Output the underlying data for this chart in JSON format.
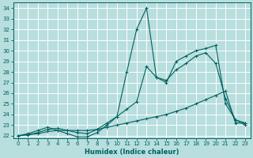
{
  "xlabel": "Humidex (Indice chaleur)",
  "bg_color": "#b8dede",
  "grid_color": "#ffffff",
  "line_color": "#006060",
  "xlim": [
    -0.5,
    23.5
  ],
  "ylim": [
    21.8,
    34.5
  ],
  "xticks": [
    0,
    1,
    2,
    3,
    4,
    5,
    6,
    7,
    8,
    9,
    10,
    11,
    12,
    13,
    14,
    15,
    16,
    17,
    18,
    19,
    20,
    21,
    22,
    23
  ],
  "yticks": [
    22,
    23,
    24,
    25,
    26,
    27,
    28,
    29,
    30,
    31,
    32,
    33,
    34
  ],
  "series": [
    {
      "x": [
        0,
        1,
        2,
        3,
        4,
        5,
        6,
        7,
        8,
        9,
        10,
        11,
        12,
        13,
        14,
        15,
        16,
        17,
        18,
        19,
        20,
        21,
        22,
        23
      ],
      "y": [
        22,
        22.2,
        22.5,
        22.8,
        22.5,
        22.2,
        21.9,
        21.9,
        22.3,
        23.0,
        23.8,
        28.0,
        32.0,
        34.0,
        27.5,
        27.0,
        29.0,
        29.5,
        30.0,
        30.2,
        30.5,
        25.0,
        23.5,
        23.0
      ]
    },
    {
      "x": [
        0,
        1,
        2,
        3,
        4,
        5,
        6,
        7,
        8,
        9,
        10,
        11,
        12,
        13,
        14,
        15,
        16,
        17,
        18,
        19,
        20,
        21,
        22,
        23
      ],
      "y": [
        22,
        22.1,
        22.3,
        22.6,
        22.7,
        22.5,
        22.3,
        22.2,
        22.6,
        23.2,
        23.8,
        24.5,
        25.2,
        28.5,
        27.5,
        27.2,
        28.2,
        28.8,
        29.5,
        29.8,
        28.8,
        25.5,
        23.5,
        23.2
      ]
    },
    {
      "x": [
        0,
        1,
        2,
        3,
        4,
        5,
        6,
        7,
        8,
        9,
        10,
        11,
        12,
        13,
        14,
        15,
        16,
        17,
        18,
        19,
        20,
        21,
        22,
        23
      ],
      "y": [
        22,
        22.1,
        22.2,
        22.4,
        22.5,
        22.5,
        22.5,
        22.5,
        22.6,
        22.8,
        23.0,
        23.2,
        23.4,
        23.6,
        23.8,
        24.0,
        24.3,
        24.6,
        25.0,
        25.4,
        25.8,
        26.2,
        23.2,
        23.2
      ]
    }
  ],
  "xlabel_fontsize": 6.0,
  "tick_fontsize": 5.0
}
